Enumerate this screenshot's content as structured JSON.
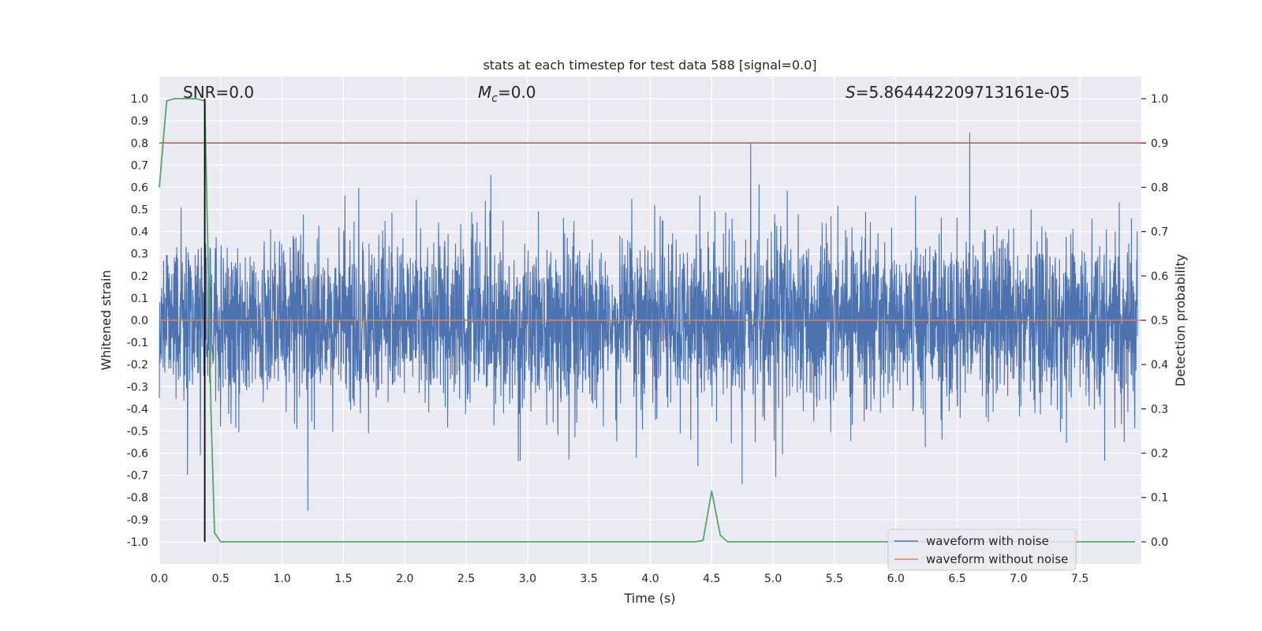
{
  "chart_data": {
    "type": "line",
    "title": "stats at each timestep for test data 588 [signal=0.0]",
    "xlabel": "Time (s)",
    "ylabel": "Whitened strain",
    "y2label": "Detection probability",
    "xlim": [
      0.0,
      8.0
    ],
    "ylim": [
      -1.1,
      1.1
    ],
    "y2lim": [
      -0.05,
      1.05
    ],
    "xticks": [
      "0.0",
      "0.5",
      "1.0",
      "1.5",
      "2.0",
      "2.5",
      "3.0",
      "3.5",
      "4.0",
      "4.5",
      "5.0",
      "5.5",
      "6.0",
      "6.5",
      "7.0",
      "7.5"
    ],
    "yticks": [
      "1.0",
      "0.9",
      "0.8",
      "0.7",
      "0.6",
      "0.5",
      "0.4",
      "0.3",
      "0.2",
      "0.1",
      "0.0",
      "-0.1",
      "-0.2",
      "-0.3",
      "-0.4",
      "-0.5",
      "-0.6",
      "-0.7",
      "-0.8",
      "-0.9",
      "-1.0"
    ],
    "y2ticks": [
      "1.0",
      "0.9",
      "0.8",
      "0.7",
      "0.6",
      "0.5",
      "0.4",
      "0.3",
      "0.2",
      "0.1",
      "0.0"
    ],
    "annotations": {
      "snr": "SNR=0.0",
      "mc_symbol": "M",
      "mc_sub": "c",
      "mc_value": "=0.0",
      "s_symbol": "S",
      "s_value": "=5.864442209713161e-05"
    },
    "grid": true,
    "legend_position": "lower-right",
    "threshold_probability": 0.9,
    "vertical_line_time": 0.37,
    "series": [
      {
        "name": "waveform with noise",
        "color": "#4c72b0",
        "axis": "left",
        "description_noise": {
          "typical_amplitude": 0.35,
          "max": 1.0,
          "min": -0.86
        }
      },
      {
        "name": "waveform without noise",
        "color": "#dd8452",
        "axis": "left",
        "constant": 0.0
      },
      {
        "name": "detection probability",
        "color": "#55a868",
        "axis": "right",
        "x": [
          0.0,
          0.06,
          0.12,
          0.2,
          0.3,
          0.37,
          0.4,
          0.42,
          0.45,
          0.5,
          1.0,
          2.0,
          3.0,
          4.0,
          4.37,
          4.43,
          4.5,
          4.57,
          4.63,
          5.0,
          6.0,
          7.0,
          7.95
        ],
        "y": [
          0.8,
          0.995,
          1.0,
          1.0,
          1.0,
          0.995,
          0.6,
          0.3,
          0.02,
          0.0,
          0.0,
          0.0,
          0.0,
          0.0,
          0.0,
          0.003,
          0.115,
          0.015,
          0.0,
          0.0,
          0.0,
          0.0,
          0.0
        ]
      }
    ],
    "threshold_color": "#c44e52",
    "vline_color": "#000000"
  }
}
